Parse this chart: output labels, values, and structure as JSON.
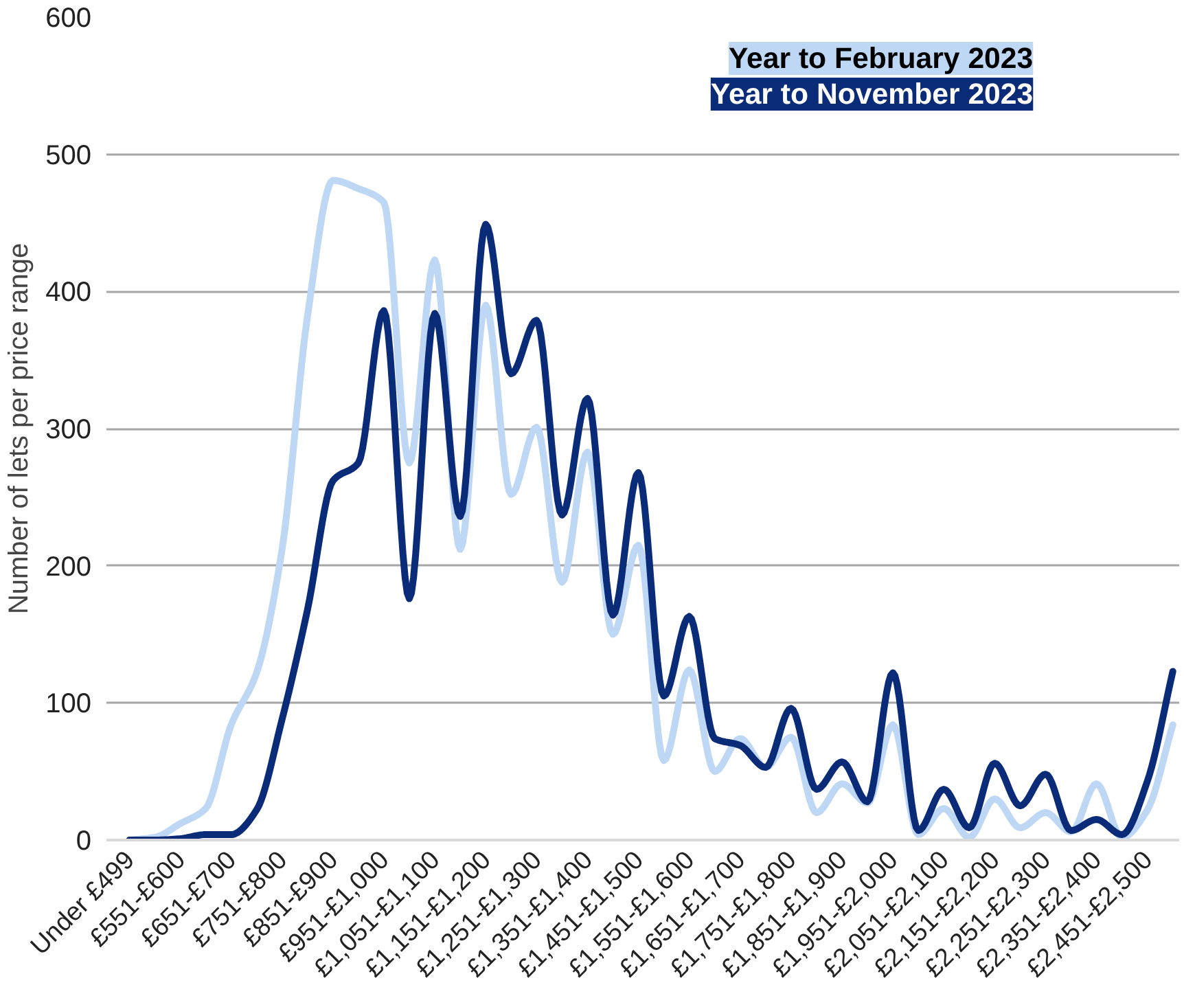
{
  "chart_data": {
    "type": "line",
    "ylabel": "Number of lets per price range",
    "categories": [
      "Under £499",
      null,
      "£551-£600",
      null,
      "£651-£700",
      null,
      "£751-£800",
      null,
      "£851-£900",
      null,
      "£951-£1,000",
      null,
      "£1,051-£1,100",
      null,
      "£1,151-£1,200",
      null,
      "£1,251-£1,300",
      null,
      "£1,351-£1,400",
      null,
      "£1,451-£1,500",
      null,
      "£1,551-£1,600",
      null,
      "£1,651-£1,700",
      null,
      "£1,751-£1,800",
      null,
      "£1,851-£1,900",
      null,
      "£1,951-£2,000",
      null,
      "£2,051-£2,100",
      null,
      "£2,151-£2,200",
      null,
      "£2,251-£2,300",
      null,
      "£2,351-£2,400",
      null,
      "£2,451-£2,500",
      null
    ],
    "series": [
      {
        "name": "Year to February 2023",
        "color": "#bdd7f5",
        "values": [
          0,
          2,
          12,
          23,
          84,
          122,
          212,
          382,
          481,
          475,
          465,
          275,
          423,
          212,
          390,
          252,
          301,
          188,
          283,
          150,
          215,
          58,
          124,
          50,
          74,
          53,
          75,
          20,
          41,
          27,
          84,
          4,
          23,
          2,
          30,
          9,
          20,
          6,
          41,
          2,
          22,
          84
        ]
      },
      {
        "name": "Year to November 2023",
        "color": "#0a2b78",
        "values": [
          0,
          0,
          1,
          4,
          4,
          22,
          88,
          168,
          262,
          275,
          386,
          176,
          384,
          236,
          449,
          340,
          379,
          237,
          322,
          164,
          268,
          105,
          163,
          74,
          69,
          53,
          96,
          37,
          57,
          28,
          122,
          7,
          37,
          9,
          56,
          25,
          48,
          7,
          15,
          4,
          43,
          123
        ]
      }
    ],
    "ylim": [
      0,
      600
    ],
    "yticks": [
      0,
      100,
      200,
      300,
      400,
      500,
      600
    ],
    "grid": "y",
    "legend": "top right",
    "line_style": "solid",
    "marker": "none"
  }
}
